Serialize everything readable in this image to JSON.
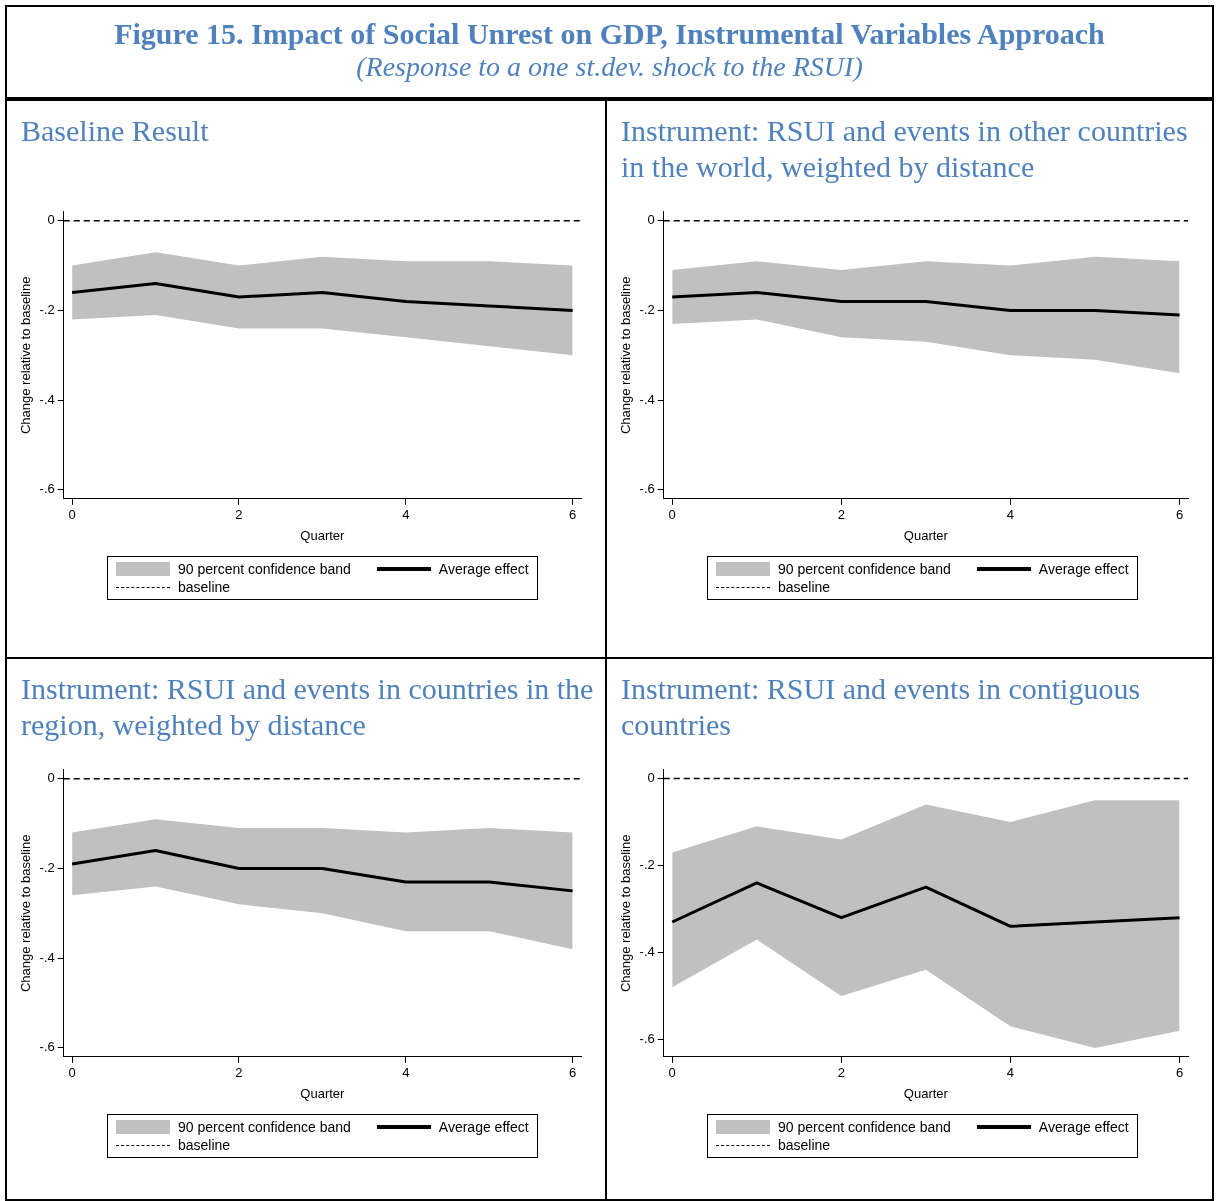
{
  "chart_data": [
    {
      "type": "line",
      "title": "Baseline Result",
      "annotations": [
        "Figure 15. Impact of Social Unrest on GDP, Instrumental Variables Approach",
        "(Response to a one st.dev. shock to the RSUI)",
        "90 percent confidence band"
      ],
      "xlabel": "Quarter",
      "ylabel": "Change relative to baseline",
      "x": [
        0,
        1,
        2,
        3,
        4,
        5,
        6
      ],
      "xlim": [
        -0.1,
        6.1
      ],
      "xticks": [
        0,
        2,
        4,
        6
      ],
      "ylim": [
        -0.62,
        0.02
      ],
      "yticks": [
        {
          "value": 0,
          "label": "0"
        },
        {
          "value": -0.2,
          "label": "-.2"
        },
        {
          "value": -0.4,
          "label": "-.4"
        },
        {
          "value": -0.6,
          "label": "-.6"
        }
      ],
      "grid": false,
      "legend": "bottom",
      "series": [
        {
          "name": "Average effect",
          "type": "line",
          "color": "#000000",
          "values": [
            -0.16,
            -0.14,
            -0.17,
            -0.16,
            -0.18,
            -0.19,
            -0.2
          ],
          "lower": [
            -0.22,
            -0.21,
            -0.24,
            -0.24,
            -0.26,
            -0.28,
            -0.3
          ],
          "upper": [
            -0.1,
            -0.07,
            -0.1,
            -0.08,
            -0.09,
            -0.09,
            -0.1
          ]
        }
      ],
      "ref_lines": [
        {
          "axis": "y",
          "value": 0,
          "label": "baseline",
          "line_style": "dashed",
          "color": "#000000"
        }
      ]
    },
    {
      "type": "line",
      "title": "Instrument: RSUI and events in other countries in the world, weighted by distance",
      "annotations": [
        "90 percent confidence band"
      ],
      "xlabel": "Quarter",
      "ylabel": "Change relative to baseline",
      "x": [
        0,
        1,
        2,
        3,
        4,
        5,
        6
      ],
      "xlim": [
        -0.1,
        6.1
      ],
      "xticks": [
        0,
        2,
        4,
        6
      ],
      "ylim": [
        -0.62,
        0.02
      ],
      "yticks": [
        {
          "value": 0,
          "label": "0"
        },
        {
          "value": -0.2,
          "label": "-.2"
        },
        {
          "value": -0.4,
          "label": "-.4"
        },
        {
          "value": -0.6,
          "label": "-.6"
        }
      ],
      "grid": false,
      "legend": "bottom",
      "series": [
        {
          "name": "Average effect",
          "type": "line",
          "color": "#000000",
          "values": [
            -0.17,
            -0.16,
            -0.18,
            -0.18,
            -0.2,
            -0.2,
            -0.21
          ],
          "lower": [
            -0.23,
            -0.22,
            -0.26,
            -0.27,
            -0.3,
            -0.31,
            -0.34
          ],
          "upper": [
            -0.11,
            -0.09,
            -0.11,
            -0.09,
            -0.1,
            -0.08,
            -0.09
          ]
        }
      ],
      "ref_lines": [
        {
          "axis": "y",
          "value": 0,
          "label": "baseline",
          "line_style": "dashed",
          "color": "#000000"
        }
      ]
    },
    {
      "type": "line",
      "title": "Instrument: RSUI and events in countries in the region, weighted by distance",
      "annotations": [
        "90 percent confidence band"
      ],
      "xlabel": "Quarter",
      "ylabel": "Change relative to baseline",
      "x": [
        0,
        1,
        2,
        3,
        4,
        5,
        6
      ],
      "xlim": [
        -0.1,
        6.1
      ],
      "xticks": [
        0,
        2,
        4,
        6
      ],
      "ylim": [
        -0.62,
        0.02
      ],
      "yticks": [
        {
          "value": 0,
          "label": "0"
        },
        {
          "value": -0.2,
          "label": "-.2"
        },
        {
          "value": -0.4,
          "label": "-.4"
        },
        {
          "value": -0.6,
          "label": "-.6"
        }
      ],
      "grid": false,
      "legend": "bottom",
      "series": [
        {
          "name": "Average effect",
          "type": "line",
          "color": "#000000",
          "values": [
            -0.19,
            -0.16,
            -0.2,
            -0.2,
            -0.23,
            -0.23,
            -0.25
          ],
          "lower": [
            -0.26,
            -0.24,
            -0.28,
            -0.3,
            -0.34,
            -0.34,
            -0.38
          ],
          "upper": [
            -0.12,
            -0.09,
            -0.11,
            -0.11,
            -0.12,
            -0.11,
            -0.12
          ]
        }
      ],
      "ref_lines": [
        {
          "axis": "y",
          "value": 0,
          "label": "baseline",
          "line_style": "dashed",
          "color": "#000000"
        }
      ]
    },
    {
      "type": "line",
      "title": "Instrument: RSUI and events in contiguous countries",
      "annotations": [
        "90 percent confidence band"
      ],
      "xlabel": "Quarter",
      "ylabel": "Change relative to baseline",
      "x": [
        0,
        1,
        2,
        3,
        4,
        5,
        6
      ],
      "xlim": [
        -0.1,
        6.1
      ],
      "xticks": [
        0,
        2,
        4,
        6
      ],
      "ylim": [
        -0.64,
        0.02
      ],
      "yticks": [
        {
          "value": 0,
          "label": "0"
        },
        {
          "value": -0.2,
          "label": "-.2"
        },
        {
          "value": -0.4,
          "label": "-.4"
        },
        {
          "value": -0.6,
          "label": "-.6"
        }
      ],
      "grid": false,
      "legend": "bottom",
      "series": [
        {
          "name": "Average effect",
          "type": "line",
          "color": "#000000",
          "values": [
            -0.33,
            -0.24,
            -0.32,
            -0.25,
            -0.34,
            -0.33,
            -0.32
          ],
          "lower": [
            -0.48,
            -0.37,
            -0.5,
            -0.44,
            -0.57,
            -0.62,
            -0.58
          ],
          "upper": [
            -0.17,
            -0.11,
            -0.14,
            -0.06,
            -0.1,
            -0.05,
            -0.05
          ]
        }
      ],
      "ref_lines": [
        {
          "axis": "y",
          "value": 0,
          "label": "baseline",
          "line_style": "dashed",
          "color": "#000000"
        }
      ]
    }
  ]
}
